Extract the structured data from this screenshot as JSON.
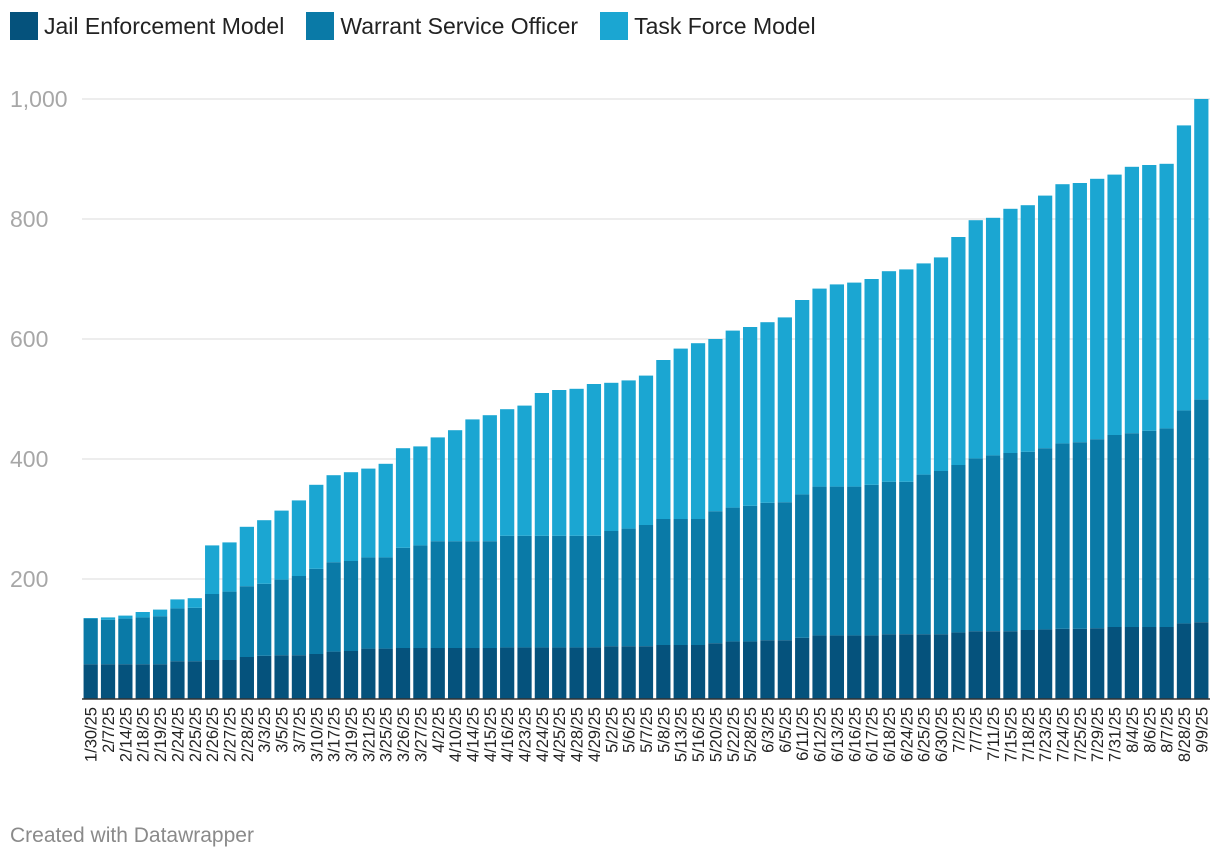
{
  "chart_data": {
    "type": "bar",
    "stacked": true,
    "title": "",
    "xlabel": "",
    "ylabel": "",
    "ylim": [
      0,
      1000
    ],
    "yticks": [
      200,
      400,
      600,
      800,
      1000
    ],
    "ytick_labels": [
      "200",
      "400",
      "600",
      "800",
      "1,000"
    ],
    "grid": true,
    "legend": "top-left",
    "categories": [
      "1/30/25",
      "2/7/25",
      "2/14/25",
      "2/18/25",
      "2/19/25",
      "2/24/25",
      "2/25/25",
      "2/26/25",
      "2/27/25",
      "2/28/25",
      "3/3/25",
      "3/5/25",
      "3/7/25",
      "3/10/25",
      "3/17/25",
      "3/19/25",
      "3/21/25",
      "3/25/25",
      "3/26/25",
      "3/27/25",
      "4/2/25",
      "4/10/25",
      "4/14/25",
      "4/15/25",
      "4/16/25",
      "4/23/25",
      "4/24/25",
      "4/25/25",
      "4/28/25",
      "4/29/25",
      "5/2/25",
      "5/6/25",
      "5/7/25",
      "5/8/25",
      "5/13/25",
      "5/16/25",
      "5/20/25",
      "5/22/25",
      "5/28/25",
      "6/3/25",
      "6/5/25",
      "6/11/25",
      "6/12/25",
      "6/13/25",
      "6/16/25",
      "6/17/25",
      "6/18/25",
      "6/24/25",
      "6/25/25",
      "6/30/25",
      "7/2/25",
      "7/7/25",
      "7/11/25",
      "7/15/25",
      "7/18/25",
      "7/23/25",
      "7/24/25",
      "7/25/25",
      "7/29/25",
      "7/31/25",
      "8/4/25",
      "8/6/25",
      "8/7/25",
      "8/28/25",
      "9/9/25"
    ],
    "series": [
      {
        "name": "Jail Enforcement Model",
        "color": "#05527c",
        "values": [
          58,
          58,
          58,
          58,
          58,
          63,
          63,
          65,
          65,
          70,
          72,
          73,
          73,
          75,
          79,
          80,
          84,
          84,
          85,
          85,
          85,
          85,
          85,
          85,
          86,
          86,
          86,
          86,
          86,
          86,
          88,
          88,
          88,
          90,
          90,
          90,
          93,
          96,
          96,
          98,
          98,
          102,
          106,
          106,
          106,
          106,
          108,
          108,
          108,
          108,
          111,
          113,
          113,
          113,
          115,
          116,
          117,
          117,
          118,
          120,
          120,
          120,
          120,
          126,
          128
        ]
      },
      {
        "name": "Warrant Service Officer",
        "color": "#0a7aa7",
        "values": [
          76,
          74,
          76,
          78,
          80,
          88,
          89,
          110,
          114,
          118,
          120,
          126,
          132,
          142,
          149,
          150,
          152,
          152,
          167,
          171,
          178,
          178,
          178,
          178,
          186,
          186,
          186,
          186,
          186,
          186,
          192,
          196,
          202,
          210,
          210,
          210,
          220,
          223,
          226,
          229,
          230,
          239,
          248,
          248,
          248,
          251,
          254,
          254,
          266,
          272,
          279,
          288,
          293,
          297,
          297,
          302,
          309,
          311,
          315,
          320,
          323,
          327,
          331,
          355,
          371
        ]
      },
      {
        "name": "Task Force Model",
        "color": "#1ba6d2",
        "values": [
          1,
          4,
          5,
          9,
          11,
          15,
          16,
          81,
          82,
          99,
          106,
          115,
          126,
          140,
          145,
          148,
          148,
          156,
          166,
          165,
          173,
          185,
          203,
          210,
          211,
          217,
          238,
          243,
          245,
          253,
          247,
          247,
          249,
          265,
          284,
          293,
          287,
          295,
          298,
          301,
          308,
          324,
          330,
          337,
          340,
          343,
          351,
          354,
          352,
          356,
          380,
          397,
          396,
          407,
          411,
          421,
          432,
          432,
          434,
          434,
          444,
          443,
          441,
          475,
          501
        ]
      }
    ]
  },
  "legend_items": [
    {
      "label": "Jail Enforcement Model",
      "color": "#05527c"
    },
    {
      "label": "Warrant Service Officer",
      "color": "#0a7aa7"
    },
    {
      "label": "Task Force Model",
      "color": "#1ba6d2"
    }
  ],
  "footer": {
    "credit": "Created with Datawrapper"
  }
}
